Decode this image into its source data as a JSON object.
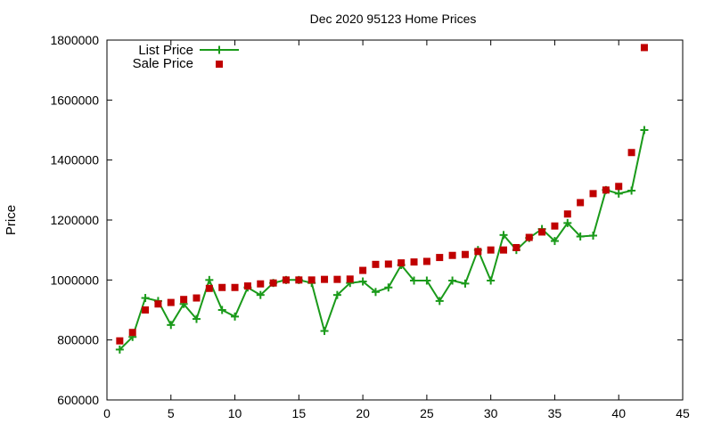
{
  "chart_data": {
    "type": "line",
    "title": "Dec 2020 95123 Home Prices",
    "xlabel": "",
    "ylabel": "Price",
    "xlim": [
      0,
      45
    ],
    "ylim": [
      600000,
      1800000
    ],
    "x_ticks": [
      "0",
      "5",
      "10",
      "15",
      "20",
      "25",
      "30",
      "35",
      "40",
      "45"
    ],
    "y_ticks": [
      "600000",
      "800000",
      "1000000",
      "1200000",
      "1400000",
      "1600000",
      "1800000"
    ],
    "grid": false,
    "legend_position": "top-left",
    "series": [
      {
        "name": "List Price",
        "style": "line-with-plus-markers",
        "color": "#1a9a1a",
        "x": [
          1,
          2,
          3,
          4,
          5,
          6,
          7,
          8,
          9,
          10,
          11,
          12,
          13,
          14,
          15,
          16,
          17,
          18,
          19,
          20,
          21,
          22,
          23,
          24,
          25,
          26,
          27,
          28,
          29,
          30,
          31,
          32,
          33,
          34,
          35,
          36,
          37,
          38,
          39,
          40,
          41,
          42
        ],
        "values": [
          768000,
          810000,
          940000,
          930000,
          850000,
          920000,
          870000,
          1000000,
          900000,
          878000,
          975000,
          950000,
          990000,
          1000000,
          1000000,
          990000,
          830000,
          950000,
          990000,
          995000,
          960000,
          975000,
          1050000,
          998000,
          998000,
          930000,
          998000,
          988000,
          1100000,
          998000,
          1150000,
          1100000,
          1140000,
          1170000,
          1130000,
          1190000,
          1145000,
          1148000,
          1300000,
          1288000,
          1298000,
          1500000
        ]
      },
      {
        "name": "Sale Price",
        "style": "square-markers",
        "color": "#c00000",
        "x": [
          1,
          2,
          3,
          4,
          5,
          6,
          7,
          8,
          9,
          10,
          11,
          12,
          13,
          14,
          15,
          16,
          17,
          18,
          19,
          20,
          21,
          22,
          23,
          24,
          25,
          26,
          27,
          28,
          29,
          30,
          31,
          32,
          33,
          34,
          35,
          36,
          37,
          38,
          39,
          40,
          41,
          42
        ],
        "values": [
          797000,
          825000,
          900000,
          920000,
          925000,
          935000,
          940000,
          972000,
          975000,
          975000,
          980000,
          987000,
          990000,
          1000000,
          1000000,
          1000000,
          1002000,
          1002000,
          1003000,
          1032000,
          1052000,
          1053000,
          1057000,
          1060000,
          1062000,
          1075000,
          1082000,
          1085000,
          1095000,
          1100000,
          1100000,
          1108000,
          1142000,
          1160000,
          1180000,
          1220000,
          1258000,
          1288000,
          1300000,
          1312000,
          1425000,
          1775000
        ]
      }
    ]
  }
}
